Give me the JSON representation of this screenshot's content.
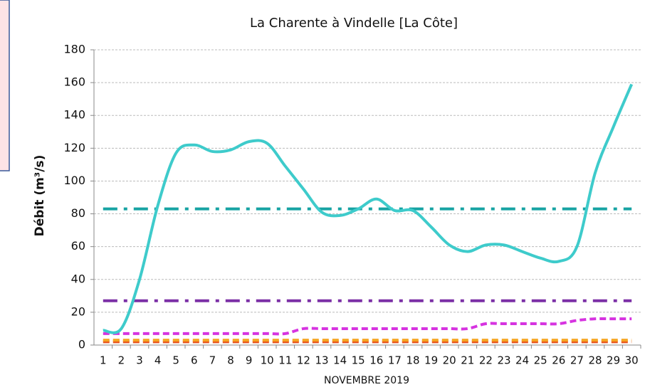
{
  "chart_data": {
    "type": "line",
    "title": "La Charente à Vindelle [La Côte]",
    "y_label": "Débit (m³/s)",
    "x_label": "NOVEMBRE 2019",
    "categories": [
      "1",
      "2",
      "3",
      "4",
      "5",
      "6",
      "7",
      "8",
      "9",
      "10",
      "11",
      "12",
      "13",
      "14",
      "15",
      "16",
      "17",
      "18",
      "19",
      "20",
      "21",
      "22",
      "23",
      "24",
      "25",
      "26",
      "27",
      "28",
      "29",
      "30"
    ],
    "ylim": [
      0,
      180
    ],
    "yticks": [
      0,
      20,
      40,
      60,
      80,
      100,
      120,
      140,
      160,
      180
    ],
    "grid": true,
    "series": [
      {
        "color": "#e8541c",
        "style": "dashed",
        "values": [
          2,
          2,
          2,
          2,
          2,
          2,
          2,
          2,
          2,
          2,
          2,
          2,
          2,
          2,
          2,
          2,
          2,
          2,
          2,
          2,
          2,
          2,
          2,
          2,
          2,
          2,
          2,
          2,
          2,
          2
        ]
      },
      {
        "color": "#f5a623",
        "style": "dashed",
        "values": [
          3,
          3,
          3,
          3,
          3,
          3,
          3,
          3,
          3,
          3,
          3,
          3,
          3,
          3,
          3,
          3,
          3,
          3,
          3,
          3,
          3,
          3,
          3,
          3,
          3,
          3,
          3,
          3,
          3,
          3
        ]
      },
      {
        "color": "#d633e0",
        "style": "dashed",
        "values": [
          7,
          7,
          7,
          7,
          7,
          7,
          7,
          7,
          7,
          7,
          7,
          10,
          10,
          10,
          10,
          10,
          10,
          10,
          10,
          10,
          10,
          13,
          13,
          13,
          13,
          13,
          15,
          16,
          16,
          16
        ]
      },
      {
        "color": "#7b2fa6",
        "style": "dashdot",
        "values": [
          27,
          27,
          27,
          27,
          27,
          27,
          27,
          27,
          27,
          27,
          27,
          27,
          27,
          27,
          27,
          27,
          27,
          27,
          27,
          27,
          27,
          27,
          27,
          27,
          27,
          27,
          27,
          27,
          27,
          27
        ]
      },
      {
        "color": "#17a3a3",
        "style": "dashdot",
        "values": [
          83,
          83,
          83,
          83,
          83,
          83,
          83,
          83,
          83,
          83,
          83,
          83,
          83,
          83,
          83,
          83,
          83,
          83,
          83,
          83,
          83,
          83,
          83,
          83,
          83,
          83,
          83,
          83,
          83,
          83
        ]
      },
      {
        "color": "#3ecbcb",
        "style": "solid",
        "values": [
          9,
          10,
          40,
          85,
          117,
          122,
          118,
          119,
          124,
          123,
          109,
          95,
          81,
          79,
          83,
          89,
          82,
          82,
          72,
          61,
          57,
          61,
          61,
          57,
          53,
          51,
          60,
          105,
          133,
          159
        ]
      }
    ]
  }
}
